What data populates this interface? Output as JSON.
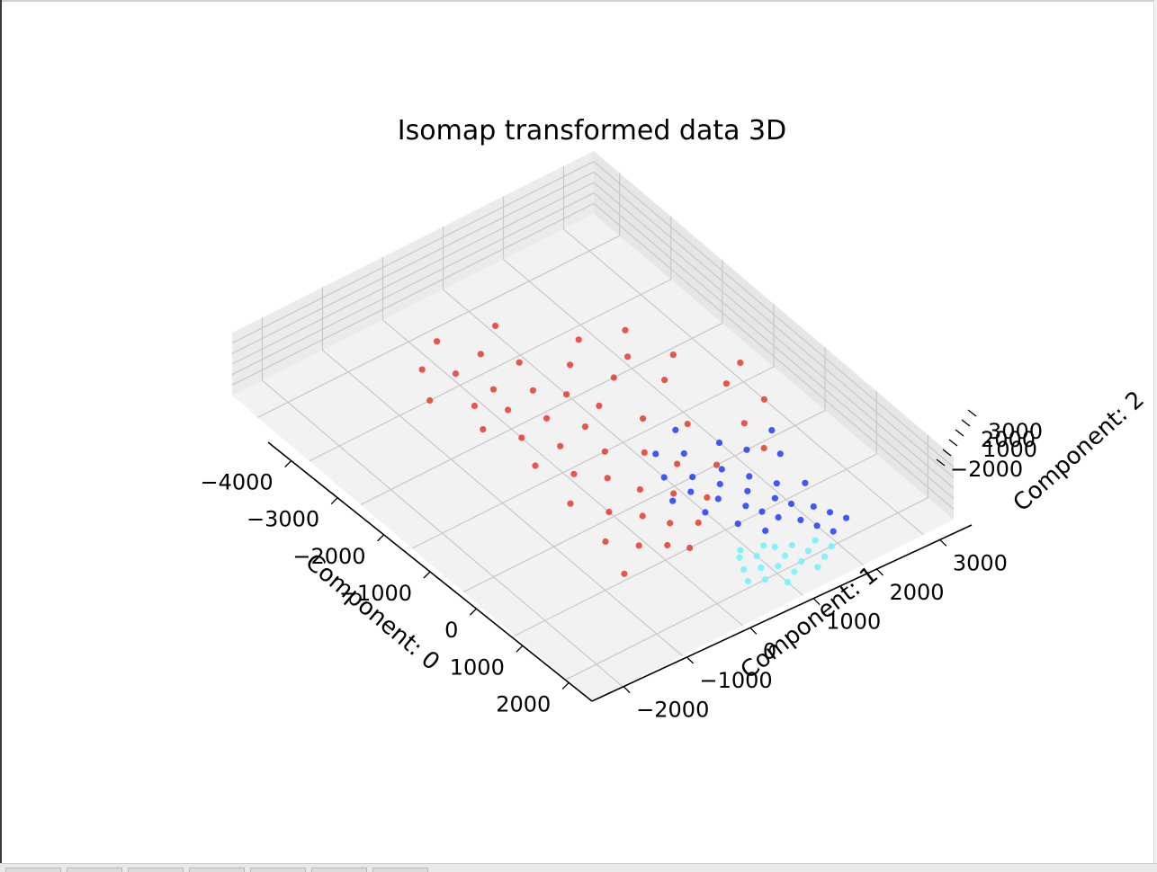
{
  "chart_data": {
    "type": "scatter",
    "title": "Isomap transformed data 3D",
    "projection": "3d",
    "xlabel": "Component: 0",
    "ylabel": "Component: 1",
    "zlabel": "Component: 2",
    "xlim": [
      -4500,
      2500
    ],
    "ylim": [
      -2500,
      3500
    ],
    "zlim": [
      -2500,
      3500
    ],
    "x_ticks": [
      "−4000",
      "−3000",
      "−2000",
      "−1000",
      "0",
      "1000",
      "2000"
    ],
    "y_ticks": [
      "−2000",
      "−1000",
      "0",
      "1000",
      "2000",
      "3000"
    ],
    "z_ticks": [
      "−2000",
      "1000",
      "2000",
      "3000"
    ],
    "grid": true,
    "legend": "none",
    "series": [
      {
        "color": "#e8392b",
        "points": [
          [
            -3800,
            300,
            0
          ],
          [
            -3500,
            -200,
            0
          ],
          [
            -3300,
            600,
            0
          ],
          [
            -3200,
            100,
            0
          ],
          [
            -3000,
            -500,
            0
          ],
          [
            -2900,
            900,
            0
          ],
          [
            -2700,
            300,
            0
          ],
          [
            -2600,
            -100,
            0
          ],
          [
            -2500,
            1400,
            0
          ],
          [
            -2400,
            700,
            0
          ],
          [
            -2300,
            200,
            0
          ],
          [
            -2200,
            -300,
            0
          ],
          [
            -2100,
            1000,
            0
          ],
          [
            -2000,
            1700,
            0
          ],
          [
            -1900,
            500,
            0
          ],
          [
            -1800,
            0,
            0
          ],
          [
            -1700,
            1200,
            0
          ],
          [
            -1600,
            2200,
            0
          ],
          [
            -1500,
            800,
            0
          ],
          [
            -1400,
            300,
            0
          ],
          [
            -1300,
            -200,
            0
          ],
          [
            -1200,
            1500,
            0
          ],
          [
            -1100,
            2800,
            0
          ],
          [
            -1000,
            700,
            0
          ],
          [
            -900,
            100,
            0
          ],
          [
            -800,
            1900,
            0
          ],
          [
            -700,
            1100,
            0
          ],
          [
            -600,
            400,
            0
          ],
          [
            -500,
            -300,
            0
          ],
          [
            -400,
            2500,
            0
          ],
          [
            -300,
            1300,
            0
          ],
          [
            -200,
            600,
            0
          ],
          [
            -100,
            0,
            0
          ],
          [
            0,
            1700,
            0
          ],
          [
            100,
            900,
            0
          ],
          [
            200,
            300,
            0
          ],
          [
            300,
            -400,
            0
          ],
          [
            400,
            1200,
            0
          ],
          [
            500,
            500,
            0
          ],
          [
            600,
            -100,
            0
          ],
          [
            700,
            800,
            0
          ],
          [
            800,
            200,
            0
          ],
          [
            900,
            -600,
            0
          ],
          [
            1000,
            400,
            0
          ],
          [
            -2800,
            1800,
            0
          ],
          [
            -1900,
            2600,
            0
          ],
          [
            -1300,
            3200,
            0
          ],
          [
            -600,
            3000,
            0
          ],
          [
            -2200,
            2100,
            0
          ],
          [
            -3600,
            1100,
            0
          ],
          [
            -2600,
            2400,
            0
          ],
          [
            100,
            2400,
            0
          ]
        ]
      },
      {
        "color": "#1f3dff",
        "points": [
          [
            -600,
            1200,
            0
          ],
          [
            -400,
            1500,
            0
          ],
          [
            -200,
            1000,
            0
          ],
          [
            0,
            1300,
            0
          ],
          [
            100,
            1700,
            0
          ],
          [
            200,
            1100,
            0
          ],
          [
            300,
            1500,
            0
          ],
          [
            400,
            1900,
            0
          ],
          [
            500,
            1300,
            0
          ],
          [
            600,
            1700,
            0
          ],
          [
            700,
            2100,
            0
          ],
          [
            800,
            1500,
            0
          ],
          [
            900,
            1900,
            0
          ],
          [
            1000,
            1600,
            0
          ],
          [
            1100,
            2000,
            0
          ],
          [
            1200,
            1700,
            0
          ],
          [
            1300,
            2200,
            0
          ],
          [
            1400,
            1900,
            0
          ],
          [
            1500,
            2300,
            0
          ],
          [
            1600,
            2000,
            0
          ],
          [
            -300,
            2000,
            0
          ],
          [
            0,
            2200,
            0
          ],
          [
            300,
            2500,
            0
          ],
          [
            -800,
            1700,
            0
          ],
          [
            -100,
            2700,
            0
          ],
          [
            200,
            800,
            0
          ],
          [
            600,
            1000,
            0
          ],
          [
            1000,
            1200,
            0
          ],
          [
            1300,
            1400,
            0
          ],
          [
            1700,
            2400,
            0
          ],
          [
            1800,
            2100,
            0
          ],
          [
            900,
            2400,
            0
          ]
        ]
      },
      {
        "color": "#6ef3ff",
        "points": [
          [
            1500,
            800,
            0
          ],
          [
            1600,
            1000,
            0
          ],
          [
            1700,
            700,
            0
          ],
          [
            1800,
            900,
            0
          ],
          [
            1900,
            1100,
            0
          ],
          [
            2000,
            800,
            0
          ],
          [
            1600,
            1300,
            0
          ],
          [
            1700,
            1500,
            0
          ],
          [
            1800,
            1300,
            0
          ],
          [
            1900,
            1600,
            0
          ],
          [
            2000,
            1400,
            0
          ],
          [
            2100,
            1200,
            0
          ],
          [
            2100,
            1700,
            0
          ],
          [
            2200,
            1500,
            0
          ],
          [
            2200,
            1000,
            0
          ],
          [
            1500,
            1200,
            0
          ],
          [
            1400,
            900,
            0
          ],
          [
            2000,
            1900,
            0
          ],
          [
            1800,
            1800,
            0
          ],
          [
            1900,
            600,
            0
          ]
        ]
      }
    ]
  }
}
